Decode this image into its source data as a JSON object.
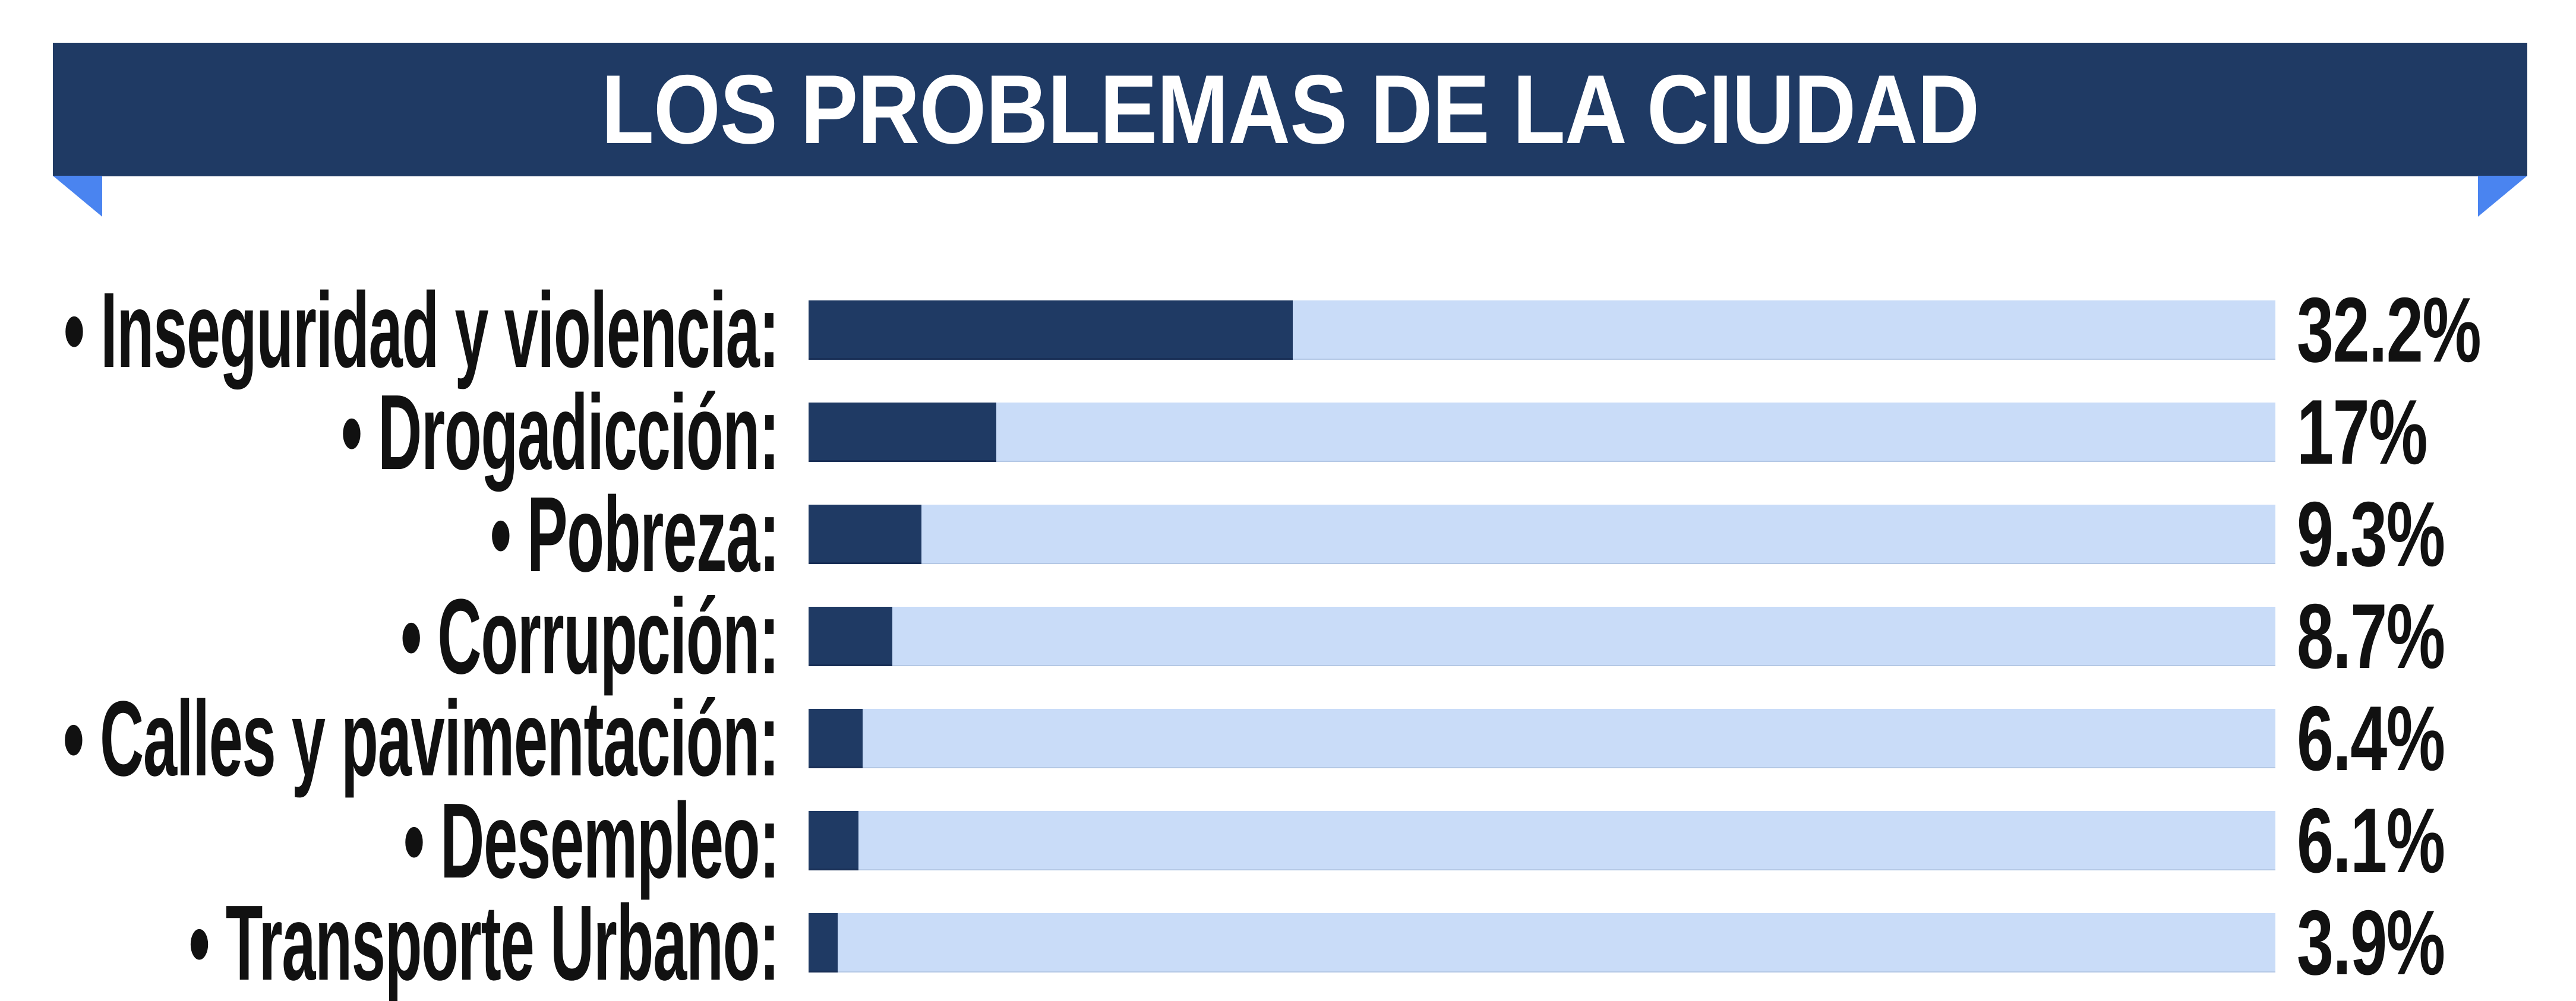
{
  "banner": {
    "title": "LOS PROBLEMAS DE LA CIUDAD",
    "bg_color": "#1f3a64",
    "fold_color": "#4a84f0",
    "title_color": "#ffffff"
  },
  "bullet": "•",
  "colors": {
    "bar_fill": "#1f3a64",
    "bar_track": "#c9dcf8",
    "text": "#111111",
    "background": "#ffffff"
  },
  "rows": [
    {
      "label": "Inseguridad y violencia:",
      "value_label": "32.2%",
      "value": 32.2,
      "fill_pct_of_track": 33.0
    },
    {
      "label": "Drogadicción:",
      "value_label": "17%",
      "value": 17,
      "fill_pct_of_track": 12.8
    },
    {
      "label": "Pobreza:",
      "value_label": "9.3%",
      "value": 9.3,
      "fill_pct_of_track": 7.7
    },
    {
      "label": "Corrupción:",
      "value_label": "8.7%",
      "value": 8.7,
      "fill_pct_of_track": 5.7
    },
    {
      "label": "Calles y pavimentación:",
      "value_label": "6.4%",
      "value": 6.4,
      "fill_pct_of_track": 3.7
    },
    {
      "label": "Desempleo:",
      "value_label": "6.1%",
      "value": 6.1,
      "fill_pct_of_track": 3.4
    },
    {
      "label": "Transporte Urbano:",
      "value_label": "3.9%",
      "value": 3.9,
      "fill_pct_of_track": 2.0
    }
  ],
  "chart_data": {
    "type": "bar",
    "orientation": "horizontal",
    "title": "LOS PROBLEMAS DE LA CIUDAD",
    "categories": [
      "Inseguridad y violencia",
      "Drogadicción",
      "Pobreza",
      "Corrupción",
      "Calles y pavimentación",
      "Desempleo",
      "Transporte Urbano"
    ],
    "values": [
      32.2,
      17,
      9.3,
      8.7,
      6.4,
      6.1,
      3.9
    ],
    "value_labels": [
      "32.2%",
      "17%",
      "9.3%",
      "8.7%",
      "6.4%",
      "6.1%",
      "3.9%"
    ],
    "unit": "%",
    "xlabel": "",
    "ylabel": "",
    "xlim": [
      0,
      100
    ],
    "grid": false,
    "legend": false,
    "notes": "Each bar is drawn on a full-width light track; drawn dark-fill fractions of the track (as rendered in the source image) are 33.0, 12.8, 7.7, 5.7, 3.7, 3.4 and 2.0 percent respectively."
  }
}
